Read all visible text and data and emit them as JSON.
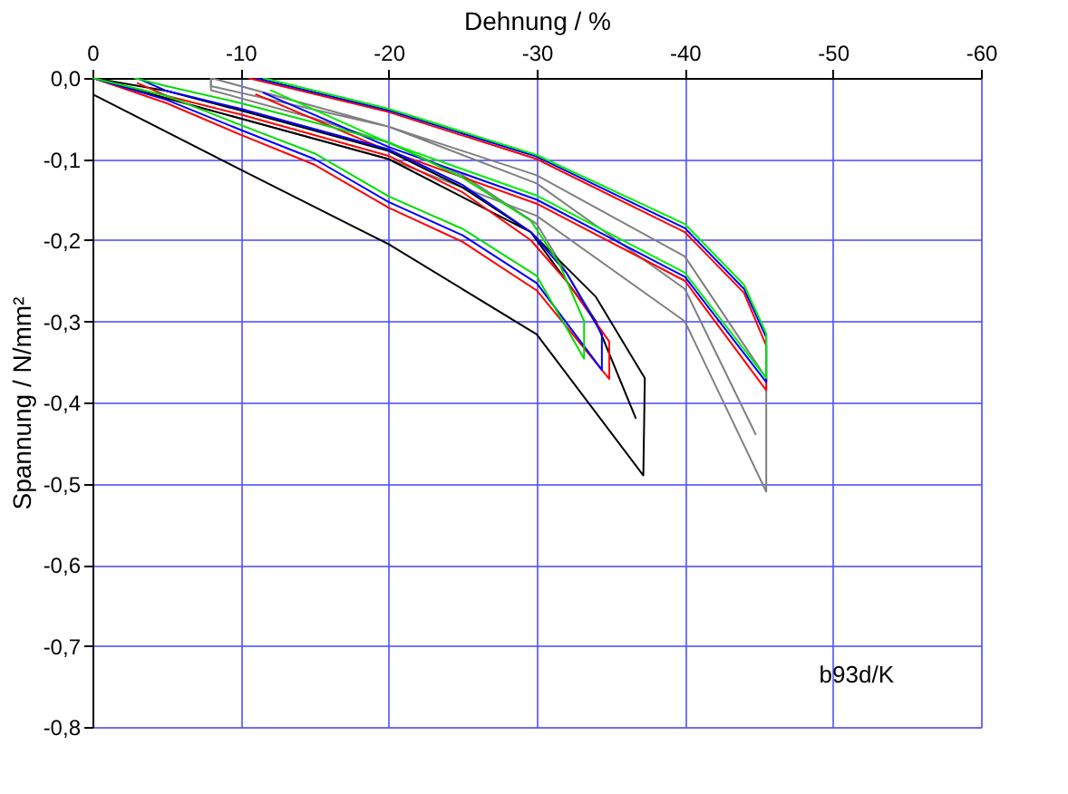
{
  "chart_data": {
    "type": "line",
    "xlabel": "Dehnung / %",
    "ylabel": "Spannung / N/mm²",
    "xlim": [
      0,
      -60
    ],
    "xticks": [
      0,
      -10,
      -20,
      -30,
      -40,
      -50,
      -60
    ],
    "ylim": [
      -0.8,
      0.0
    ],
    "yticks": [
      {
        "value": 0.0,
        "label": "0,0"
      },
      {
        "value": -0.1,
        "label": "-0,1"
      },
      {
        "value": -0.2,
        "label": "-0,2"
      },
      {
        "value": -0.3,
        "label": "-0,3"
      },
      {
        "value": -0.4,
        "label": "-0,4"
      },
      {
        "value": -0.5,
        "label": "-0,5"
      },
      {
        "value": -0.6,
        "label": "-0,6"
      },
      {
        "value": -0.7,
        "label": "-0,7"
      },
      {
        "value": -0.8,
        "label": "-0,8"
      }
    ],
    "grid": true,
    "marker": "none",
    "line_style": "solid",
    "annotations": [
      "b93d/K"
    ],
    "series": [
      {
        "color": "#808080",
        "x": [
          0,
          -10,
          -20,
          -30,
          -40,
          -45.5,
          -45.5,
          -40,
          -30,
          -20,
          -8,
          -8,
          -20,
          -30,
          -40,
          -44.8
        ],
        "values": [
          0,
          -0.05,
          -0.1,
          -0.17,
          -0.3,
          -0.51,
          -0.37,
          -0.22,
          -0.12,
          -0.06,
          0,
          -0.01,
          -0.06,
          -0.13,
          -0.26,
          -0.44
        ]
      },
      {
        "color": "#808080",
        "x": [
          -8,
          -8,
          -15,
          -20,
          -25,
          -30,
          -34
        ],
        "values": [
          0,
          -0.015,
          -0.05,
          -0.08,
          -0.12,
          -0.18,
          -0.3
        ]
      },
      {
        "color": "#ff0000",
        "x": [
          -10.5,
          -20,
          -30,
          -40,
          -44,
          -45.5,
          -45.5,
          -40,
          -30,
          -20,
          -11
        ],
        "values": [
          0,
          -0.042,
          -0.1,
          -0.19,
          -0.265,
          -0.33,
          -0.385,
          -0.25,
          -0.155,
          -0.09,
          -0.02
        ]
      },
      {
        "color": "#0000ff",
        "x": [
          -11,
          -20,
          -30,
          -40,
          -44,
          -45.5,
          -45.5,
          -40,
          -30,
          -20,
          -11.5
        ],
        "values": [
          0,
          -0.04,
          -0.097,
          -0.185,
          -0.26,
          -0.32,
          -0.375,
          -0.245,
          -0.15,
          -0.085,
          -0.018
        ]
      },
      {
        "color": "#00ee00",
        "x": [
          -11.5,
          -20,
          -30,
          -40,
          -44,
          -45.5,
          -45.5,
          -40,
          -30,
          -20,
          -12
        ],
        "values": [
          0,
          -0.038,
          -0.095,
          -0.18,
          -0.255,
          -0.315,
          -0.37,
          -0.24,
          -0.145,
          -0.08,
          -0.015
        ]
      },
      {
        "color": "#000000",
        "x": [
          0,
          -10,
          -20,
          -30,
          -37.2,
          -37.3,
          -34,
          -29.6,
          -25,
          -20,
          -10,
          -5,
          0,
          -10,
          -20,
          -29.6,
          -34,
          -36.7
        ],
        "values": [
          -0.02,
          -0.113,
          -0.205,
          -0.316,
          -0.49,
          -0.37,
          -0.27,
          -0.19,
          -0.135,
          -0.09,
          -0.04,
          -0.016,
          0,
          -0.05,
          -0.1,
          -0.19,
          -0.3,
          -0.42
        ]
      },
      {
        "color": "#ff0000",
        "x": [
          0,
          -5,
          -10,
          -15,
          -20,
          -25,
          -30,
          -34.9,
          -34.9,
          -32,
          -29.6,
          -25,
          -20,
          -10,
          -5,
          -3
        ],
        "values": [
          0,
          -0.031,
          -0.07,
          -0.107,
          -0.16,
          -0.202,
          -0.262,
          -0.371,
          -0.325,
          -0.25,
          -0.2,
          -0.141,
          -0.096,
          -0.045,
          -0.022,
          -0.006
        ]
      },
      {
        "color": "#0000ff",
        "x": [
          0,
          -5,
          -10,
          -15,
          -20,
          -25,
          -30,
          -34.4,
          -34.4,
          -32,
          -29.6,
          -25,
          -20,
          -10,
          -5,
          -3
        ],
        "values": [
          0,
          -0.027,
          -0.064,
          -0.1,
          -0.153,
          -0.194,
          -0.253,
          -0.36,
          -0.316,
          -0.24,
          -0.19,
          -0.132,
          -0.088,
          -0.038,
          -0.016,
          0
        ]
      },
      {
        "color": "#00dd00",
        "x": [
          0,
          -5,
          -10,
          -15,
          -20,
          -25,
          -30,
          -33.2,
          -33.2,
          -31.5,
          -29.6,
          -25,
          -20,
          -10,
          -5,
          -2.8
        ],
        "values": [
          0,
          -0.022,
          -0.058,
          -0.093,
          -0.146,
          -0.186,
          -0.244,
          -0.346,
          -0.3,
          -0.228,
          -0.176,
          -0.123,
          -0.079,
          -0.031,
          -0.01,
          0
        ]
      }
    ]
  }
}
